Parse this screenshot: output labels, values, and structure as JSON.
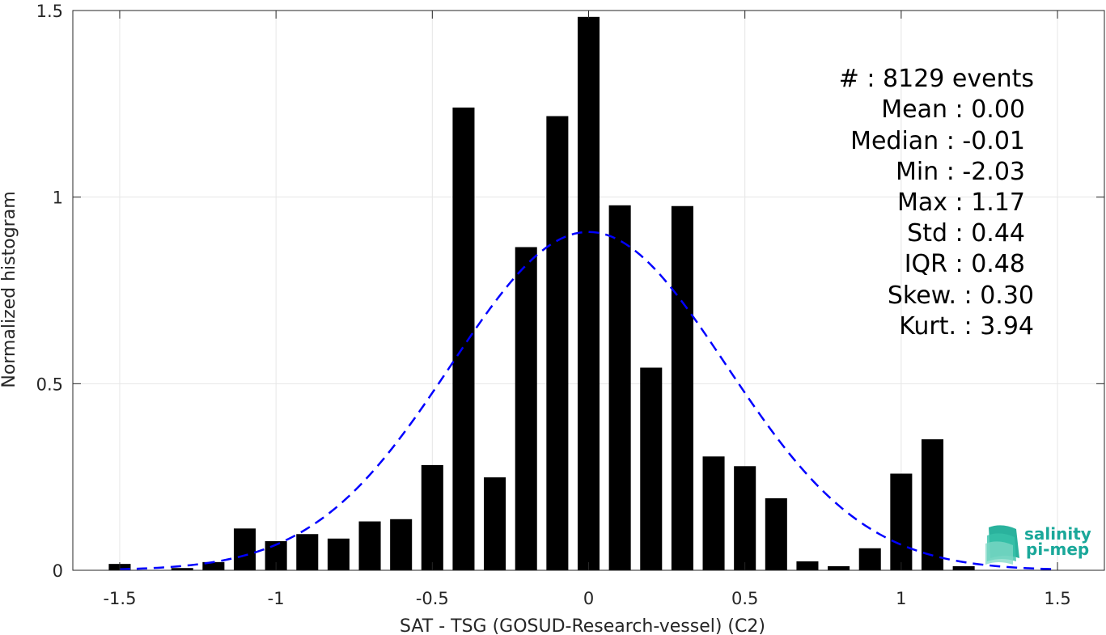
{
  "chart_data": {
    "type": "bar",
    "xlabel": "SAT - TSG (GOSUD-Research-vessel) (C2)",
    "ylabel": "Normalized histogram",
    "xlim": [
      -1.65,
      1.65
    ],
    "ylim": [
      0,
      1.5
    ],
    "grid": true,
    "x_ticks": [
      "-1.5",
      "-1",
      "-0.5",
      "0",
      "0.5",
      "1",
      "1.5"
    ],
    "x_tick_values": [
      -1.5,
      -1,
      -0.5,
      0,
      0.5,
      1,
      1.5
    ],
    "y_ticks": [
      "0",
      "0.5",
      "1",
      "1.5"
    ],
    "y_tick_values": [
      0,
      0.5,
      1,
      1.5
    ],
    "bin_width": 0.1,
    "bar_fraction": 0.7,
    "bars": {
      "x": [
        -1.5,
        -1.4,
        -1.3,
        -1.2,
        -1.1,
        -1.0,
        -0.9,
        -0.8,
        -0.7,
        -0.6,
        -0.5,
        -0.4,
        -0.3,
        -0.2,
        -0.1,
        0.0,
        0.1,
        0.2,
        0.3,
        0.4,
        0.5,
        0.6,
        0.7,
        0.8,
        0.9,
        1.0,
        1.1,
        1.2
      ],
      "values": [
        0.017,
        0.0,
        0.006,
        0.022,
        0.112,
        0.078,
        0.097,
        0.085,
        0.131,
        0.137,
        0.282,
        1.24,
        0.249,
        0.866,
        1.217,
        1.483,
        0.978,
        0.543,
        0.976,
        0.305,
        0.279,
        0.193,
        0.024,
        0.011,
        0.059,
        0.259,
        0.351,
        0.011
      ],
      "color": "#000000"
    },
    "fit": {
      "type": "normal",
      "mean": 0.0,
      "std": 0.44,
      "color": "#0000ff",
      "style": "dashed",
      "x_range": [
        -1.5,
        1.5
      ]
    },
    "annotations": {
      "count": "#  : 8129 events",
      "mean": "Mean : 0.00",
      "median": "Median : -0.01",
      "min": "Min : -2.03",
      "max": "Max : 1.17",
      "std": "Std : 0.44",
      "iqr": "IQR : 0.48",
      "skew": "Skew. : 0.30",
      "kurt": "Kurt. : 3.94"
    }
  },
  "logo": {
    "line1": "salinity",
    "line2": "pi-mep",
    "color": "#1aa89a"
  }
}
